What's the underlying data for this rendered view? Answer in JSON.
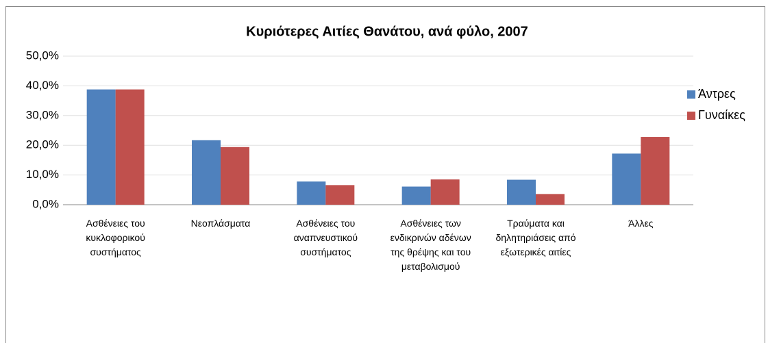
{
  "chart_data": {
    "type": "bar",
    "title": "Κυριότερες Αιτίες Θανάτου, ανά φύλο, 2007",
    "categories": [
      "Ασθένειες του κυκλοφορικού συστήματος",
      "Νεοπλάσματα",
      "Ασθένειες του αναπνευστικού συστήματος",
      "Ασθένειες των ενδικρινών αδένων της θρέψης και του μεταβολισμού",
      "Τραύματα και δηλητηριάσεις από εξωτερικές αιτίες",
      "Άλλες"
    ],
    "series": [
      {
        "name": "Άντρες",
        "color": "#4f81bd",
        "values": [
          38.8,
          21.7,
          7.8,
          6.1,
          8.4,
          17.2
        ]
      },
      {
        "name": "Γυναίκες",
        "color": "#c0504d",
        "values": [
          38.8,
          19.4,
          6.6,
          8.5,
          3.6,
          22.8
        ]
      }
    ],
    "ylim": [
      0,
      50
    ],
    "yticks": [
      {
        "value": 0,
        "label": "0,0%"
      },
      {
        "value": 10,
        "label": "10,0%"
      },
      {
        "value": 20,
        "label": "20,0%"
      },
      {
        "value": 30,
        "label": "30,0%"
      },
      {
        "value": 40,
        "label": "40,0%"
      },
      {
        "value": 50,
        "label": "50,0%"
      }
    ],
    "grid": true,
    "legend": "right"
  }
}
